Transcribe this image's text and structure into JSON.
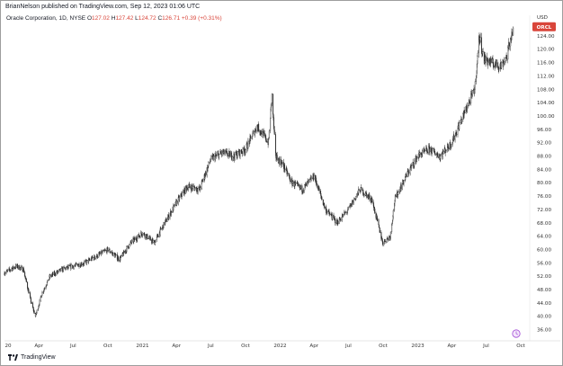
{
  "header": {
    "publisher_line": "BrianNelson published on TradingView.com, Sep 12, 2023 01:06 UTC",
    "symbol_desc": "Oracle Corporation, 1D, NYSE",
    "ohlc": {
      "o_label": "O",
      "o": "127.02",
      "h_label": "H",
      "h": "127.42",
      "l_label": "L",
      "l": "124.72",
      "c_label": "C",
      "c": "126.71",
      "change": "+0.39 (+0.31%)"
    }
  },
  "footer": {
    "brand": "TradingView"
  },
  "colors": {
    "candle": "#2a2a2a",
    "price_tag": "#d9453a",
    "grid": "#f0f0f0"
  },
  "chart_data": {
    "type": "candlestick",
    "symbol_tag": "ORCL",
    "currency": "USD",
    "grid": false,
    "y_axis": {
      "side": "right",
      "ticks": [
        "124.00",
        "120.00",
        "116.00",
        "112.00",
        "108.00",
        "104.00",
        "100.00",
        "96.00",
        "92.00",
        "88.00",
        "84.00",
        "80.00",
        "76.00",
        "72.00",
        "68.00",
        "64.00",
        "60.00",
        "56.00",
        "52.00",
        "48.00",
        "44.00",
        "40.00",
        "36.00"
      ],
      "range": [
        34,
        128
      ]
    },
    "x_axis": {
      "ticks": [
        "20",
        "Apr",
        "Jul",
        "Oct",
        "2021",
        "Apr",
        "Jul",
        "Oct",
        "2022",
        "Apr",
        "Jul",
        "Oct",
        "2023",
        "Apr",
        "Jul",
        "Oct"
      ],
      "range": [
        "2020-01-01",
        "2023-10-20"
      ]
    },
    "series": [
      {
        "points": [
          [
            "2020-01-01",
            53
          ],
          [
            "2020-02-01",
            55
          ],
          [
            "2020-02-20",
            54
          ],
          [
            "2020-03-12",
            44
          ],
          [
            "2020-03-23",
            40
          ],
          [
            "2020-04-10",
            47
          ],
          [
            "2020-05-01",
            52
          ],
          [
            "2020-06-01",
            54
          ],
          [
            "2020-07-01",
            55
          ],
          [
            "2020-08-01",
            56
          ],
          [
            "2020-09-01",
            58
          ],
          [
            "2020-10-01",
            60
          ],
          [
            "2020-11-01",
            57
          ],
          [
            "2020-12-01",
            62
          ],
          [
            "2021-01-01",
            65
          ],
          [
            "2021-02-01",
            62
          ],
          [
            "2021-03-01",
            68
          ],
          [
            "2021-04-01",
            74
          ],
          [
            "2021-05-01",
            79
          ],
          [
            "2021-06-01",
            78
          ],
          [
            "2021-07-01",
            87
          ],
          [
            "2021-08-01",
            89
          ],
          [
            "2021-09-01",
            88
          ],
          [
            "2021-10-01",
            90
          ],
          [
            "2021-11-01",
            97
          ],
          [
            "2021-12-01",
            92
          ],
          [
            "2021-12-10",
            106
          ],
          [
            "2021-12-20",
            88
          ],
          [
            "2022-01-10",
            85
          ],
          [
            "2022-02-01",
            80
          ],
          [
            "2022-03-01",
            78
          ],
          [
            "2022-04-01",
            82
          ],
          [
            "2022-05-01",
            72
          ],
          [
            "2022-06-01",
            68
          ],
          [
            "2022-07-01",
            72
          ],
          [
            "2022-08-01",
            78
          ],
          [
            "2022-09-01",
            75
          ],
          [
            "2022-09-30",
            62
          ],
          [
            "2022-10-20",
            64
          ],
          [
            "2022-11-01",
            75
          ],
          [
            "2022-12-01",
            82
          ],
          [
            "2023-01-01",
            88
          ],
          [
            "2023-02-01",
            90
          ],
          [
            "2023-03-01",
            88
          ],
          [
            "2023-04-01",
            92
          ],
          [
            "2023-05-01",
            100
          ],
          [
            "2023-06-01",
            108
          ],
          [
            "2023-06-13",
            124
          ],
          [
            "2023-06-25",
            117
          ],
          [
            "2023-07-15",
            116
          ],
          [
            "2023-08-10",
            115
          ],
          [
            "2023-08-25",
            118
          ],
          [
            "2023-09-11",
            126.71
          ]
        ]
      }
    ],
    "last_price_marker": "ORCL",
    "alert_icon": "clock-alert-icon"
  }
}
